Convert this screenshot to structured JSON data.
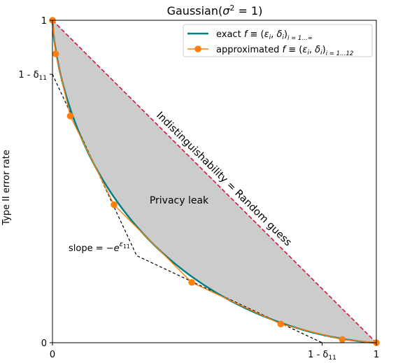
{
  "chart_data": {
    "type": "line",
    "title_main": "Gaussian(",
    "title_sigma": "σ",
    "title_sup": "2",
    "title_tail": " = 1)",
    "ylabel": "Type II error rate",
    "xlim": [
      0,
      1
    ],
    "ylim": [
      0,
      1
    ],
    "x_ticks": [
      {
        "value": 0,
        "label": "0"
      },
      {
        "value": 0.8326,
        "label": "1 - δ",
        "sub": "11"
      },
      {
        "value": 1,
        "label": "1"
      }
    ],
    "y_ticks": [
      {
        "value": 0,
        "label": "0"
      },
      {
        "value": 0.8326,
        "label": "1 - δ",
        "sub": "11"
      },
      {
        "value": 1,
        "label": "1"
      }
    ],
    "series": [
      {
        "name": "exact f ≡ (εᵢ, δᵢ)ᵢ₌₁…∞",
        "legend": {
          "prefix": "exact ",
          "f": "f",
          "mid": " ≡ (",
          "e": "ε",
          "e_sub": "i",
          "comma": ", ",
          "d": "δ",
          "d_sub": "i",
          "close": ")",
          "range_sub": "i = 1…∞"
        },
        "color": "#008080",
        "mu": 1
      },
      {
        "name": "approximated f ≡ (εᵢ, δᵢ)ᵢ₌₁…₁₂",
        "legend": {
          "prefix": "approximated ",
          "f": "f",
          "mid": " ≡ (",
          "e": "ε",
          "e_sub": "i",
          "comma": ", ",
          "d": "δ",
          "d_sub": "i",
          "close": ")",
          "range_sub": "i = 1…12"
        },
        "color": "#ff7f0e",
        "points": [
          {
            "x": 0.0,
            "y": 1.0
          },
          {
            "x": 0.01,
            "y": 0.896
          },
          {
            "x": 0.055,
            "y": 0.703
          },
          {
            "x": 0.19,
            "y": 0.428
          },
          {
            "x": 0.43,
            "y": 0.187
          },
          {
            "x": 0.705,
            "y": 0.058
          },
          {
            "x": 0.895,
            "y": 0.01
          },
          {
            "x": 1.0,
            "y": 0.0
          }
        ]
      },
      {
        "name": "Indistinguishability = Random guess",
        "color": "#dc143c",
        "points": [
          {
            "x": 0,
            "y": 1
          },
          {
            "x": 1,
            "y": 0
          }
        ]
      }
    ],
    "tangent_line": {
      "color": "#000000",
      "points": [
        {
          "x": 0,
          "y": 0.8326
        },
        {
          "x": 0.26,
          "y": 0.27
        },
        {
          "x": 0.8326,
          "y": 0
        }
      ]
    },
    "region": {
      "color": "#cccccc"
    },
    "annotations": {
      "diagonal": "Indistinguishability = Random guess",
      "privacy_leak": "Privacy leak",
      "slope_prefix": "slope = −",
      "slope_e": "e",
      "slope_sup": "ε",
      "slope_sup_sub": "11"
    },
    "grid": false,
    "legend_position": "top-right"
  }
}
